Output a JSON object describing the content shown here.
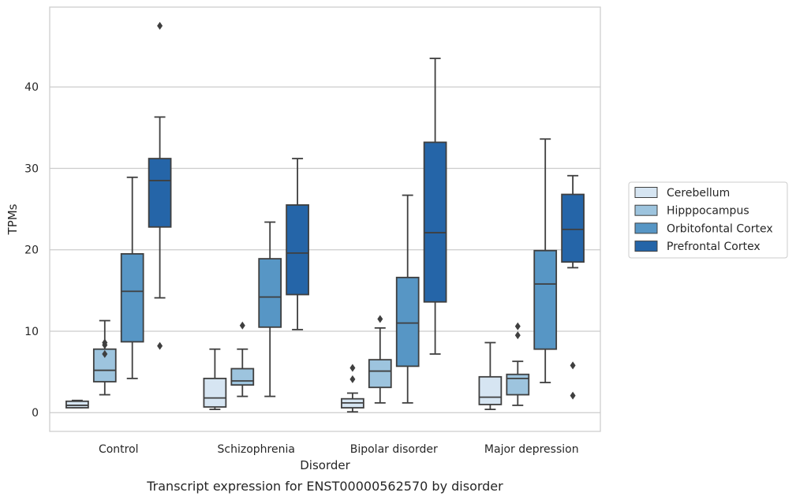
{
  "chart_data": {
    "type": "box",
    "caption": "Transcript expression for ENST00000562570 by disorder",
    "xlabel": "Disorder",
    "ylabel": "TPMs",
    "ylim": [
      -2.3,
      49.8
    ],
    "yticks": [
      0,
      10,
      20,
      30,
      40
    ],
    "grid": "horizontal",
    "legend_position": "right",
    "categories": [
      "Control",
      "Schizophrenia",
      "Bipolar disorder",
      "Major depression"
    ],
    "series": [
      {
        "name": "Cerebellum",
        "color": "#d6e5f2",
        "boxes": [
          {
            "whislo": 0.6,
            "q1": 0.6,
            "med": 0.9,
            "q3": 1.4,
            "whishi": 1.5,
            "fliers": []
          },
          {
            "whislo": 0.4,
            "q1": 0.7,
            "med": 1.8,
            "q3": 4.2,
            "whishi": 7.8,
            "fliers": []
          },
          {
            "whislo": 0.1,
            "q1": 0.6,
            "med": 1.2,
            "q3": 1.7,
            "whishi": 2.4,
            "fliers": [
              4.1,
              5.5
            ]
          },
          {
            "whislo": 0.4,
            "q1": 1.0,
            "med": 1.9,
            "q3": 4.4,
            "whishi": 8.6,
            "fliers": []
          }
        ]
      },
      {
        "name": "Hipppocampus",
        "color": "#9dc4de",
        "boxes": [
          {
            "whislo": 2.2,
            "q1": 3.8,
            "med": 5.2,
            "q3": 7.8,
            "whishi": 11.3,
            "fliers": [
              7.2,
              8.3,
              8.6
            ]
          },
          {
            "whislo": 2.0,
            "q1": 3.4,
            "med": 3.9,
            "q3": 5.4,
            "whishi": 7.8,
            "fliers": [
              10.7
            ]
          },
          {
            "whislo": 1.2,
            "q1": 3.1,
            "med": 5.1,
            "q3": 6.5,
            "whishi": 10.4,
            "fliers": [
              11.5
            ]
          },
          {
            "whislo": 0.9,
            "q1": 2.2,
            "med": 4.2,
            "q3": 4.7,
            "whishi": 6.3,
            "fliers": [
              9.5,
              10.6
            ]
          }
        ]
      },
      {
        "name": "Orbitofontal Cortex",
        "color": "#5796c5",
        "boxes": [
          {
            "whislo": 4.2,
            "q1": 8.7,
            "med": 14.9,
            "q3": 19.5,
            "whishi": 28.9,
            "fliers": []
          },
          {
            "whislo": 2.0,
            "q1": 10.5,
            "med": 14.2,
            "q3": 18.9,
            "whishi": 23.4,
            "fliers": []
          },
          {
            "whislo": 1.2,
            "q1": 5.7,
            "med": 11.0,
            "q3": 16.6,
            "whishi": 26.7,
            "fliers": []
          },
          {
            "whislo": 3.7,
            "q1": 7.8,
            "med": 15.8,
            "q3": 19.9,
            "whishi": 33.6,
            "fliers": []
          }
        ]
      },
      {
        "name": "Prefrontal Cortex",
        "color": "#2565a8",
        "boxes": [
          {
            "whislo": 14.1,
            "q1": 22.8,
            "med": 28.5,
            "q3": 31.2,
            "whishi": 36.3,
            "fliers": [
              8.2,
              47.5
            ]
          },
          {
            "whislo": 10.2,
            "q1": 14.5,
            "med": 19.6,
            "q3": 25.5,
            "whishi": 31.2,
            "fliers": []
          },
          {
            "whislo": 7.2,
            "q1": 13.6,
            "med": 22.1,
            "q3": 33.2,
            "whishi": 43.5,
            "fliers": []
          },
          {
            "whislo": 17.8,
            "q1": 18.5,
            "med": 22.5,
            "q3": 26.8,
            "whishi": 29.1,
            "fliers": [
              2.1,
              5.8
            ]
          }
        ]
      }
    ]
  }
}
